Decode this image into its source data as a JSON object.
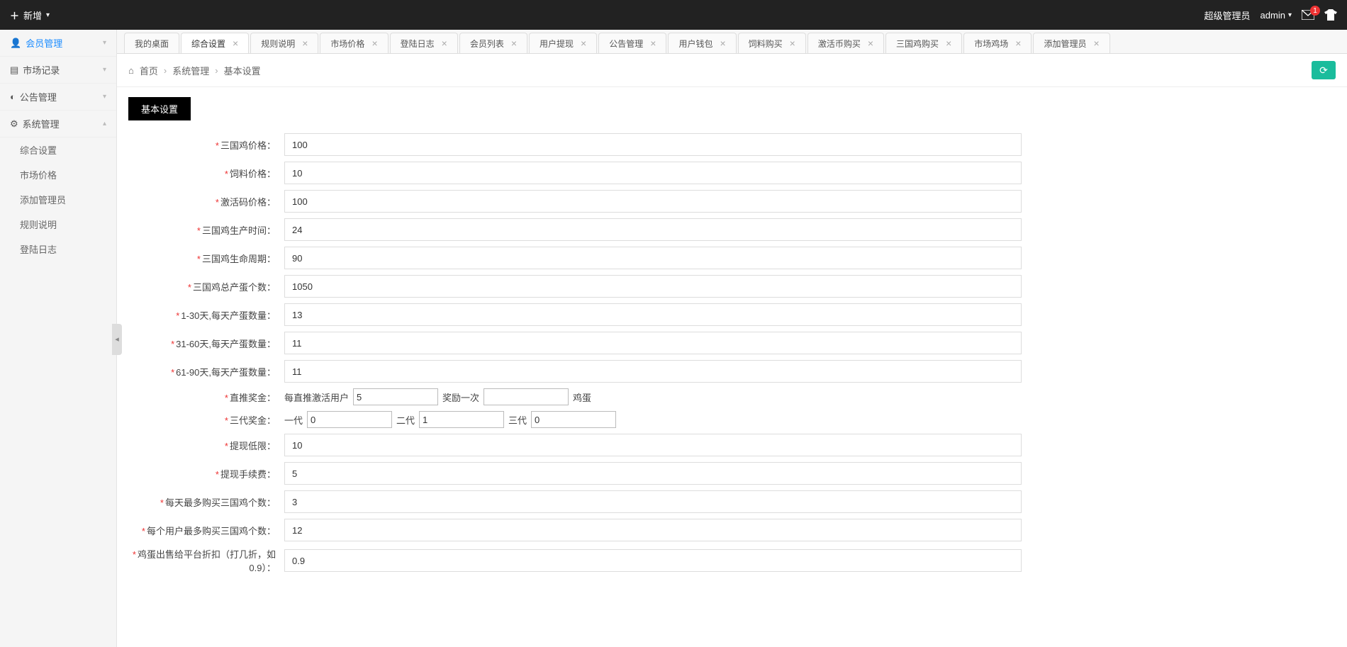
{
  "topbar": {
    "add_label": "新增",
    "role_label": "超级管理员",
    "user_label": "admin",
    "mail_badge": "1"
  },
  "sidebar": {
    "items": [
      {
        "label": "会员管理",
        "icon": "user"
      },
      {
        "label": "市场记录",
        "icon": "list"
      },
      {
        "label": "公告管理",
        "icon": "bullhorn"
      },
      {
        "label": "系统管理",
        "icon": "gear",
        "expanded": true
      }
    ],
    "subs": [
      {
        "label": "综合设置"
      },
      {
        "label": "市场价格"
      },
      {
        "label": "添加管理员"
      },
      {
        "label": "规则说明"
      },
      {
        "label": "登陆日志"
      }
    ]
  },
  "tabs": [
    {
      "label": "我的桌面",
      "closable": false
    },
    {
      "label": "综合设置",
      "closable": true,
      "active": true
    },
    {
      "label": "规则说明",
      "closable": true
    },
    {
      "label": "市场价格",
      "closable": true
    },
    {
      "label": "登陆日志",
      "closable": true
    },
    {
      "label": "会员列表",
      "closable": true
    },
    {
      "label": "用户提现",
      "closable": true
    },
    {
      "label": "公告管理",
      "closable": true
    },
    {
      "label": "用户钱包",
      "closable": true
    },
    {
      "label": "饲料购买",
      "closable": true
    },
    {
      "label": "激活币购买",
      "closable": true
    },
    {
      "label": "三国鸡购买",
      "closable": true
    },
    {
      "label": "市场鸡场",
      "closable": true
    },
    {
      "label": "添加管理员",
      "closable": true
    }
  ],
  "breadcrumb": {
    "home": "首页",
    "l1": "系统管理",
    "l2": "基本设置"
  },
  "section_title": "基本设置",
  "form": {
    "f0": {
      "label": "三国鸡价格：",
      "value": "100"
    },
    "f1": {
      "label": "饲料价格：",
      "value": "10"
    },
    "f2": {
      "label": "激活码价格：",
      "value": "100"
    },
    "f3": {
      "label": "三国鸡生产时间：",
      "value": "24"
    },
    "f4": {
      "label": "三国鸡生命周期：",
      "value": "90"
    },
    "f5": {
      "label": "三国鸡总产蛋个数：",
      "value": "1050"
    },
    "f6": {
      "label": "1-30天,每天产蛋数量：",
      "value": "13"
    },
    "f7": {
      "label": "31-60天,每天产蛋数量：",
      "value": "11"
    },
    "f8": {
      "label": "61-90天,每天产蛋数量：",
      "value": "11"
    },
    "f9": {
      "label": "直推奖金：",
      "prefix": "每直推激活用户",
      "v1": "5",
      "mid": "奖励一次",
      "v2": "",
      "suffix": "鸡蛋"
    },
    "f10": {
      "label": "三代奖金：",
      "g1l": "一代",
      "g1v": "0",
      "g2l": "二代",
      "g2v": "1",
      "g3l": "三代",
      "g3v": "0"
    },
    "f11": {
      "label": "提现低限：",
      "value": "10"
    },
    "f12": {
      "label": "提现手续费：",
      "value": "5"
    },
    "f13": {
      "label": "每天最多购买三国鸡个数：",
      "value": "3"
    },
    "f14": {
      "label": "每个用户最多购买三国鸡个数：",
      "value": "12"
    },
    "f15": {
      "label": "鸡蛋出售给平台折扣（打几折，如0.9）：",
      "value": "0.9"
    }
  }
}
